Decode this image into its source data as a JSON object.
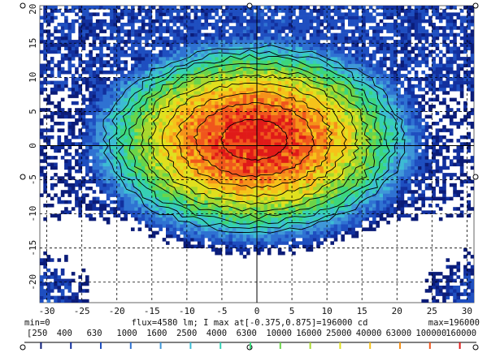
{
  "chart_data": {
    "type": "heatmap",
    "title": "",
    "xlabel": "",
    "ylabel": "",
    "x_ticks": [
      -30,
      -25,
      -20,
      -15,
      -10,
      -5,
      0,
      5,
      10,
      15,
      20,
      25,
      30
    ],
    "y_ticks": [
      20,
      15,
      10,
      5,
      0,
      -5,
      -10,
      -15,
      -20
    ],
    "xlim": [
      -31,
      31
    ],
    "ylim": [
      -23,
      20.5
    ],
    "grid": true,
    "peak_at": [
      -0.375,
      0.875
    ],
    "contour_levels": [
      250,
      400,
      630,
      1000,
      1600,
      2500,
      4000,
      6300,
      10000,
      16000,
      25000,
      40000,
      63000,
      100000,
      160000
    ],
    "colorscale_labels": [
      "[250",
      "400",
      "630",
      "1000",
      "1600",
      "2500",
      "4000",
      "6300",
      "10000",
      "16000",
      "25000",
      "40000",
      "63000",
      "100000",
      "160000"
    ],
    "colorscale_colors": [
      "#0b1c78",
      "#12309e",
      "#1f4fc0",
      "#2f72d2",
      "#3f97d8",
      "#3cbcd4",
      "#36d0b4",
      "#3cd67c",
      "#6ad44a",
      "#a8d82e",
      "#e0e01e",
      "#f6c21a",
      "#f5921a",
      "#f0561c",
      "#e01a18"
    ],
    "min_label": "min=0",
    "max_label": "max=196000",
    "info_text": "flux=4580 lm; I max at[-0.375,0.875]=196000 cd"
  }
}
